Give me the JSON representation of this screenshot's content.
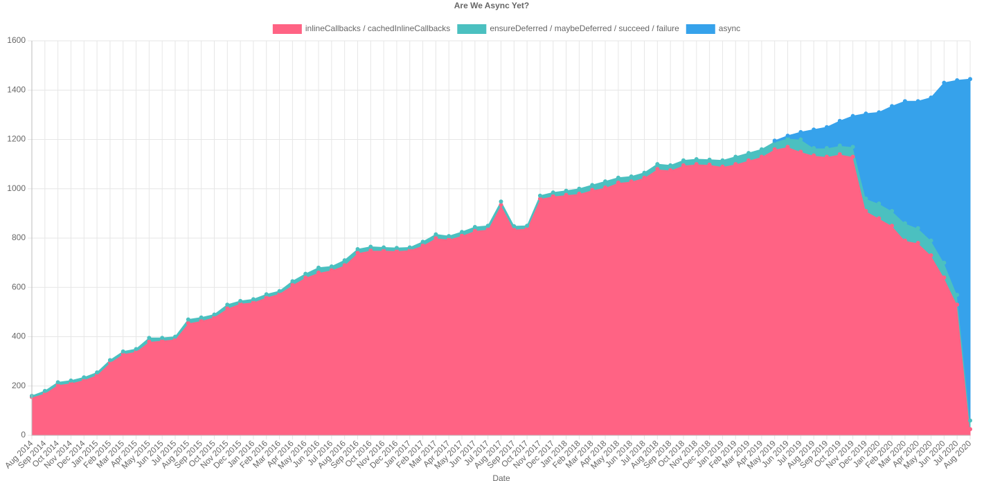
{
  "chart_data": {
    "type": "stacked_area",
    "title": "Are We Async Yet?",
    "x_label": "Date",
    "categories": [
      "Aug 2014",
      "Sep 2014",
      "Oct 2014",
      "Nov 2014",
      "Dec 2014",
      "Jan 2015",
      "Feb 2015",
      "Mar 2015",
      "Apr 2015",
      "May 2015",
      "Jun 2015",
      "Jul 2015",
      "Aug 2015",
      "Sep 2015",
      "Oct 2015",
      "Nov 2015",
      "Dec 2015",
      "Jan 2016",
      "Feb 2016",
      "Mar 2016",
      "Apr 2016",
      "May 2016",
      "Jun 2016",
      "Jul 2016",
      "Aug 2016",
      "Sep 2016",
      "Oct 2016",
      "Nov 2016",
      "Dec 2016",
      "Jan 2017",
      "Feb 2017",
      "Mar 2017",
      "Apr 2017",
      "May 2017",
      "Jun 2017",
      "Jul 2017",
      "Aug 2017",
      "Sep 2017",
      "Oct 2017",
      "Nov 2017",
      "Dec 2017",
      "Jan 2018",
      "Feb 2018",
      "Mar 2018",
      "Apr 2018",
      "May 2018",
      "Jun 2018",
      "Jul 2018",
      "Aug 2018",
      "Sep 2018",
      "Oct 2018",
      "Nov 2018",
      "Dec 2018",
      "Jan 2019",
      "Feb 2019",
      "Mar 2019",
      "Apr 2019",
      "May 2019",
      "Jun 2019",
      "Jul 2019",
      "Aug 2019",
      "Sep 2019",
      "Oct 2019",
      "Nov 2019",
      "Dec 2019",
      "Jan 2020",
      "Feb 2020",
      "Mar 2020",
      "Apr 2020",
      "May 2020",
      "Jun 2020",
      "Jul 2020",
      "Aug 2020"
    ],
    "series": [
      {
        "name": "inlineCallbacks / cachedInlineCallbacks",
        "color": "#ff6384",
        "values": [
          155,
          170,
          205,
          212,
          225,
          245,
          295,
          330,
          340,
          380,
          385,
          390,
          455,
          465,
          480,
          515,
          535,
          540,
          560,
          575,
          610,
          640,
          660,
          670,
          690,
          740,
          750,
          750,
          748,
          752,
          770,
          800,
          795,
          810,
          830,
          835,
          935,
          835,
          840,
          960,
          970,
          975,
          980,
          995,
          1005,
          1025,
          1030,
          1045,
          1080,
          1075,
          1095,
          1100,
          1098,
          1090,
          1100,
          1115,
          1130,
          1160,
          1170,
          1150,
          1135,
          1130,
          1140,
          1130,
          910,
          880,
          850,
          790,
          780,
          730,
          640,
          530,
          25
        ]
      },
      {
        "name": "ensureDeferred / maybeDeferred / succeed / failure",
        "color": "#4bc0c0",
        "values": [
          5,
          10,
          10,
          10,
          10,
          10,
          10,
          10,
          10,
          15,
          10,
          10,
          15,
          13,
          10,
          15,
          10,
          12,
          12,
          10,
          15,
          15,
          20,
          15,
          20,
          15,
          15,
          12,
          12,
          10,
          15,
          15,
          13,
          15,
          15,
          15,
          13,
          13,
          10,
          12,
          15,
          17,
          20,
          20,
          25,
          20,
          20,
          20,
          20,
          20,
          20,
          20,
          20,
          25,
          30,
          30,
          30,
          30,
          35,
          50,
          30,
          35,
          35,
          40,
          50,
          60,
          60,
          70,
          60,
          60,
          60,
          40,
          35
        ]
      },
      {
        "name": "async",
        "color": "#36a2eb",
        "values": [
          null,
          null,
          null,
          null,
          null,
          null,
          null,
          null,
          null,
          null,
          null,
          null,
          null,
          null,
          null,
          null,
          null,
          null,
          null,
          null,
          null,
          null,
          null,
          null,
          null,
          null,
          null,
          null,
          null,
          null,
          null,
          null,
          null,
          null,
          null,
          null,
          null,
          null,
          null,
          null,
          null,
          null,
          null,
          null,
          null,
          null,
          null,
          null,
          null,
          null,
          null,
          null,
          null,
          null,
          null,
          null,
          null,
          5,
          10,
          30,
          75,
          85,
          100,
          125,
          345,
          370,
          425,
          495,
          515,
          580,
          730,
          870,
          1385
        ]
      }
    ],
    "ylim": [
      0,
      1600
    ],
    "yticks": [
      0,
      200,
      400,
      600,
      800,
      1000,
      1200,
      1400,
      1600
    ],
    "grid": true
  }
}
